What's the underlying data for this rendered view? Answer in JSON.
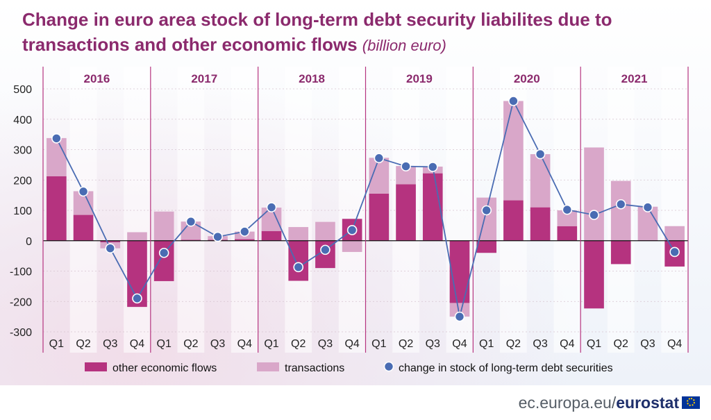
{
  "header": {
    "title": "Change in euro area stock of long-term debt security liabilites due to transactions and other economic flows",
    "unit": "(billion euro)"
  },
  "footer": {
    "site": "ec.europa.eu/",
    "brand": "eurostat",
    "flag_icon": "eu-flag-icon"
  },
  "chart_data": {
    "type": "bar",
    "subtype": "stacked bar with line",
    "years": [
      "2016",
      "2017",
      "2018",
      "2019",
      "2020",
      "2021"
    ],
    "categories": [
      "Q1",
      "Q2",
      "Q3",
      "Q4",
      "Q1",
      "Q2",
      "Q3",
      "Q4",
      "Q1",
      "Q2",
      "Q3",
      "Q4",
      "Q1",
      "Q2",
      "Q3",
      "Q4",
      "Q1",
      "Q2",
      "Q3",
      "Q4",
      "Q1",
      "Q2",
      "Q3",
      "Q4"
    ],
    "series": [
      {
        "name": "other economic flows",
        "kind": "bar",
        "color": "#b5337f",
        "values": [
          212,
          85,
          -5,
          -218,
          -133,
          3,
          3,
          5,
          32,
          -132,
          -90,
          72,
          155,
          186,
          222,
          -205,
          -40,
          133,
          110,
          48,
          -223,
          -77,
          2,
          -85
        ]
      },
      {
        "name": "transactions",
        "kind": "bar",
        "color": "#d9a7c9",
        "values": [
          126,
          78,
          -20,
          28,
          96,
          60,
          12,
          25,
          77,
          45,
          62,
          -37,
          118,
          60,
          22,
          -45,
          142,
          327,
          175,
          52,
          307,
          197,
          110,
          48
        ]
      },
      {
        "name": "change in stock of long-term debt securities",
        "kind": "line",
        "color": "#4a6cb3",
        "values": [
          337,
          162,
          -25,
          -190,
          -40,
          63,
          13,
          30,
          110,
          -87,
          -30,
          35,
          272,
          245,
          243,
          -250,
          100,
          460,
          285,
          102,
          85,
          120,
          110,
          -37
        ]
      }
    ],
    "ylim": [
      -300,
      500
    ],
    "yticks": [
      -300,
      -200,
      -100,
      0,
      100,
      200,
      300,
      400,
      500
    ],
    "grid": true,
    "legend_position": "bottom"
  }
}
